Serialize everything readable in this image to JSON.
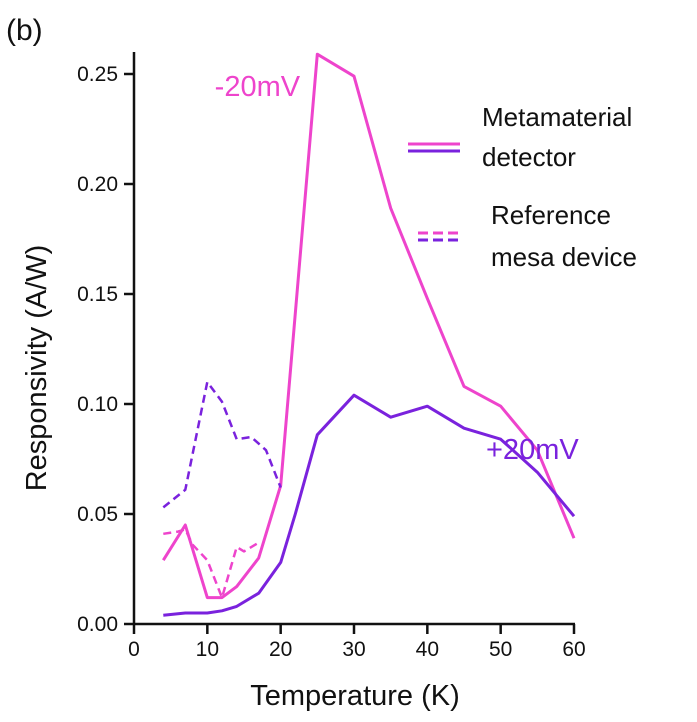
{
  "panel_label": "(b)",
  "chart_data": {
    "type": "line",
    "xlabel": "Temperature (K)",
    "ylabel": "Responsivity (A/W)",
    "xlim": [
      0,
      60
    ],
    "ylim": [
      0,
      0.26
    ],
    "x_ticks": [
      0,
      10,
      20,
      30,
      40,
      50,
      60
    ],
    "y_ticks": [
      0.0,
      0.05,
      0.1,
      0.15,
      0.2,
      0.25
    ],
    "x_tick_labels": [
      "0",
      "10",
      "20",
      "30",
      "40",
      "50",
      "60"
    ],
    "y_tick_labels": [
      "0.00",
      "0.05",
      "0.10",
      "0.15",
      "0.20",
      "0.25"
    ],
    "grid": false,
    "legend": [
      {
        "label": "Metamaterial detector",
        "lines": [
          "Metamaterial",
          "detector"
        ],
        "style": "solid"
      },
      {
        "label": "Reference mesa device",
        "lines": [
          "Reference",
          "mesa device"
        ],
        "style": "dashed"
      }
    ],
    "annotations": [
      {
        "text": "-20mV",
        "color": "#ee44cc",
        "x": 11,
        "y": 0.24
      },
      {
        "text": "+20mV",
        "color": "#7a22dd",
        "x": 48,
        "y": 0.075
      }
    ],
    "colors": {
      "minus20": "#ee44cc",
      "plus20": "#7a22dd"
    },
    "series": [
      {
        "key": "meta_minus",
        "color": "#ee44cc",
        "dash": false,
        "x": [
          4,
          7,
          10,
          12,
          14,
          17,
          20,
          25,
          30,
          35,
          40,
          45,
          50,
          55,
          60
        ],
        "y": [
          0.029,
          0.045,
          0.012,
          0.012,
          0.017,
          0.03,
          0.063,
          0.259,
          0.249,
          0.189,
          0.148,
          0.108,
          0.099,
          0.079,
          0.039
        ]
      },
      {
        "key": "meta_plus",
        "color": "#7a22dd",
        "dash": false,
        "x": [
          4,
          7,
          10,
          12,
          14,
          17,
          20,
          22,
          25,
          30,
          35,
          40,
          45,
          50,
          55,
          60
        ],
        "y": [
          0.004,
          0.005,
          0.005,
          0.006,
          0.008,
          0.014,
          0.028,
          0.05,
          0.086,
          0.104,
          0.094,
          0.099,
          0.089,
          0.084,
          0.069,
          0.049
        ]
      },
      {
        "key": "ref_plus",
        "color": "#7a22dd",
        "dash": true,
        "x": [
          4,
          7,
          10,
          12,
          14,
          16,
          18,
          20
        ],
        "y": [
          0.053,
          0.061,
          0.11,
          0.101,
          0.084,
          0.085,
          0.079,
          0.062
        ]
      },
      {
        "key": "ref_minus",
        "color": "#ee44cc",
        "dash": true,
        "x": [
          4,
          6,
          7,
          8,
          10,
          12,
          14,
          15,
          17
        ],
        "y": [
          0.041,
          0.042,
          0.043,
          0.036,
          0.029,
          0.012,
          0.035,
          0.033,
          0.037
        ]
      }
    ]
  }
}
